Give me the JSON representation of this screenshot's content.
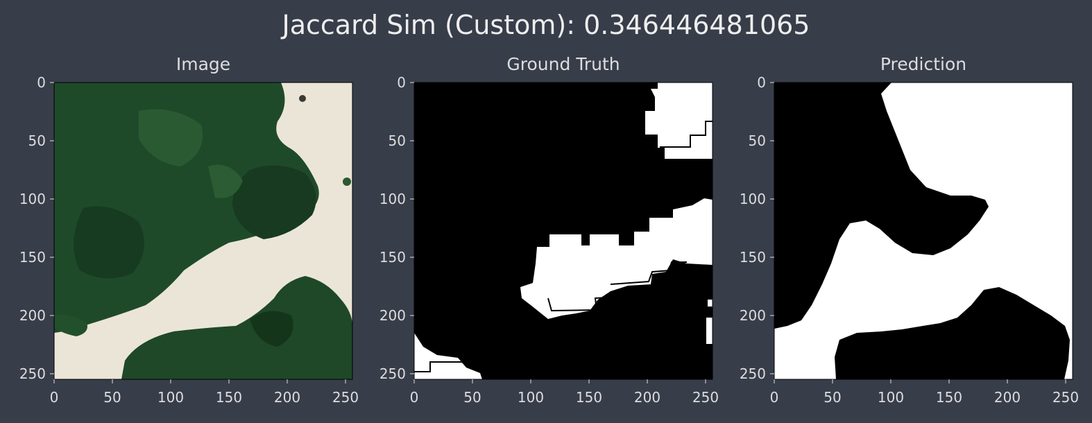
{
  "figure_title": "Jaccard Sim (Custom): 0.346446481065",
  "colors": {
    "background": "#383d4a",
    "mask_foreground": "#ffffff",
    "mask_background": "#000000",
    "tree_canopy": "#1f4a28",
    "sand": "#ece6d8"
  },
  "chart_data": [
    {
      "type": "heatmap",
      "title": "Image",
      "xlim": [
        0,
        256
      ],
      "ylim": [
        256,
        0
      ],
      "xticks": [
        "0",
        "50",
        "100",
        "150",
        "200",
        "250"
      ],
      "yticks": [
        "0",
        "50",
        "100",
        "150",
        "200",
        "250"
      ],
      "content": "aerial image: dark green tree canopy on light sand"
    },
    {
      "type": "heatmap",
      "title": "Ground Truth",
      "xlim": [
        0,
        256
      ],
      "ylim": [
        256,
        0
      ],
      "xticks": [
        "0",
        "50",
        "100",
        "150",
        "200",
        "250"
      ],
      "yticks": [
        "0",
        "50",
        "100",
        "150",
        "200",
        "250"
      ],
      "values": "binary mask: 1 = white, 0 = black"
    },
    {
      "type": "heatmap",
      "title": "Prediction",
      "xlim": [
        0,
        256
      ],
      "ylim": [
        256,
        0
      ],
      "xticks": [
        "0",
        "50",
        "100",
        "150",
        "200",
        "250"
      ],
      "yticks": [
        "0",
        "50",
        "100",
        "150",
        "200",
        "250"
      ],
      "values": "binary mask: 1 = white, 0 = black"
    }
  ]
}
